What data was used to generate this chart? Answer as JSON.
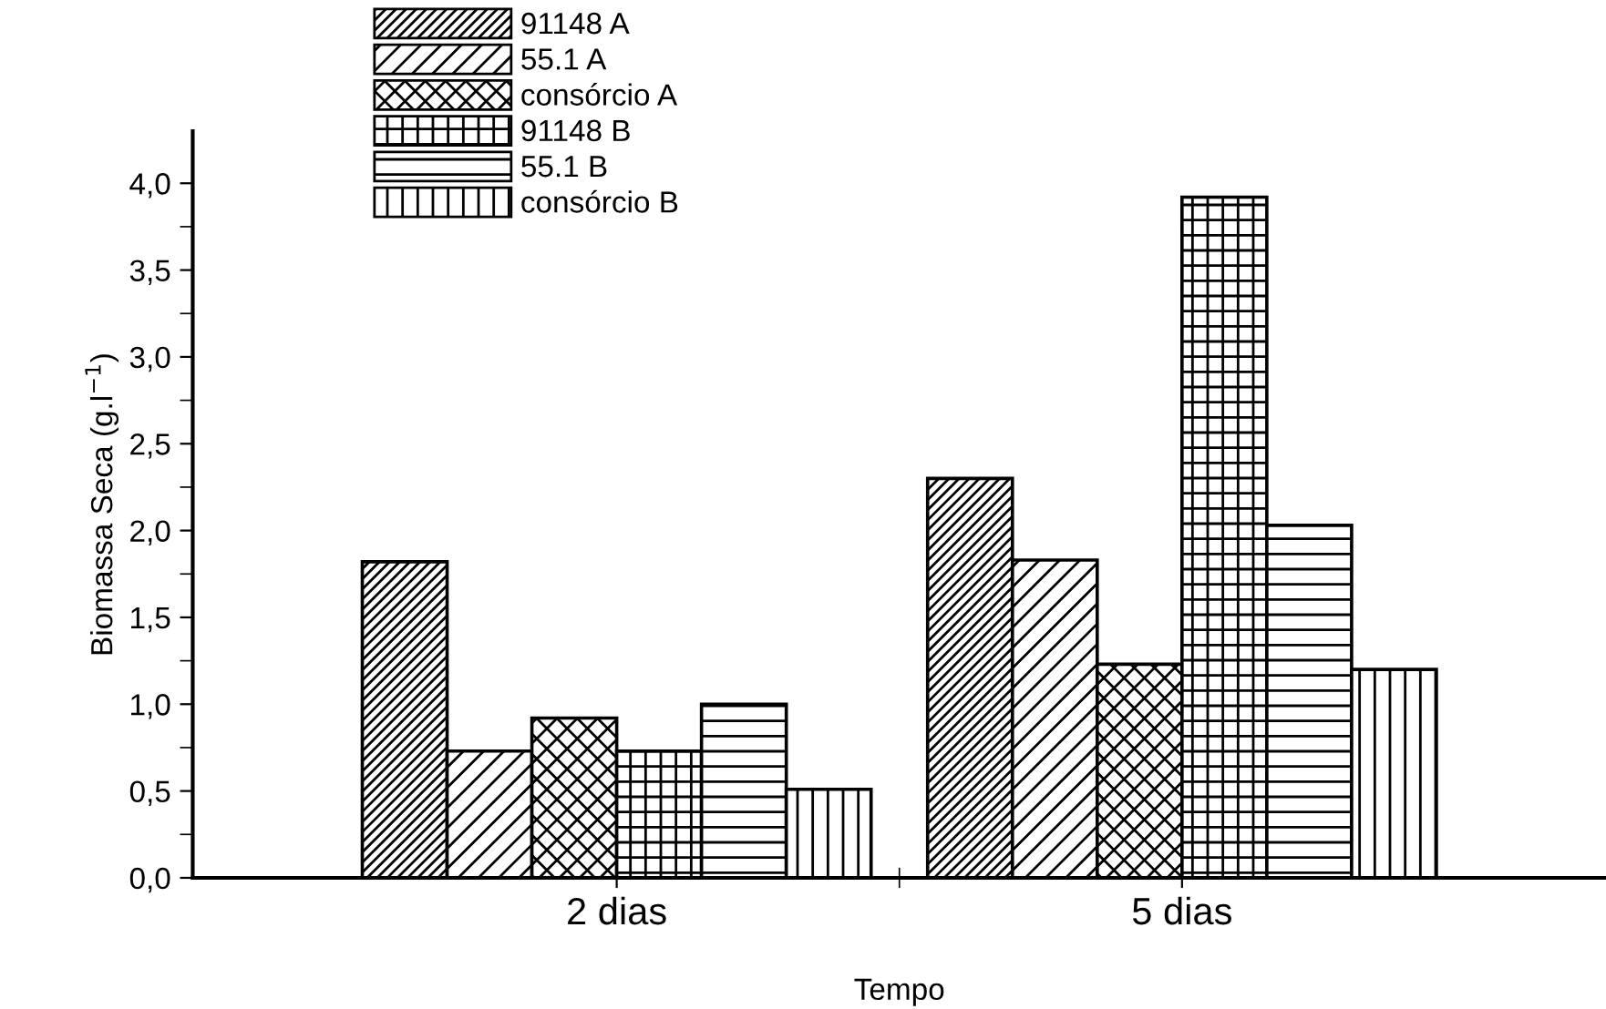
{
  "chart_data": {
    "type": "bar",
    "xlabel": "Tempo",
    "ylabel": "Biomassa Seca (g.l$^{−1}$)",
    "categories": [
      "2 dias",
      "5 dias"
    ],
    "series": [
      {
        "name": "91148 A",
        "color": "#000000",
        "values": [
          1.82,
          2.3
        ]
      },
      {
        "name": "55.1 A",
        "color": "#000000",
        "values": [
          0.73,
          1.83
        ]
      },
      {
        "name": "consórcio A",
        "color": "#000000",
        "values": [
          0.92,
          1.23
        ]
      },
      {
        "name": "91148 B",
        "color": "#000000",
        "values": [
          0.73,
          3.92
        ]
      },
      {
        "name": "55.1 B",
        "color": "#000000",
        "values": [
          1.0,
          2.03
        ]
      },
      {
        "name": "consórcio B",
        "color": "#000000",
        "values": [
          0.51,
          1.2
        ]
      }
    ],
    "ylim": [
      0,
      4.3
    ],
    "yticks": [
      {
        "value": 0,
        "label": "0,0"
      },
      {
        "value": 0.5,
        "label": "0,5"
      },
      {
        "value": 1.0,
        "label": "1,0"
      },
      {
        "value": 1.5,
        "label": "1,5"
      },
      {
        "value": 2.0,
        "label": "2,0"
      },
      {
        "value": 2.5,
        "label": "2,5"
      },
      {
        "value": 3.0,
        "label": "3,0"
      },
      {
        "value": 3.5,
        "label": "3,5"
      },
      {
        "value": 4.0,
        "label": "4,0"
      }
    ],
    "grid": false,
    "legend": "top left"
  }
}
